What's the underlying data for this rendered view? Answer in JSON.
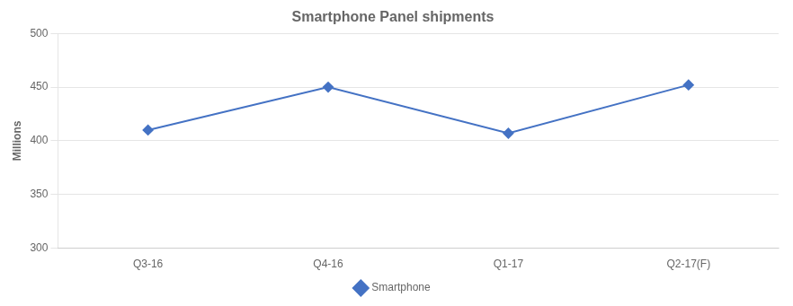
{
  "chart_data": {
    "type": "line",
    "title": "Smartphone Panel shipments",
    "categories": [
      "Q3-16",
      "Q4-16",
      "Q1-17",
      "Q2-17(F)"
    ],
    "series": [
      {
        "name": "Smartphone",
        "color": "#4472C4",
        "marker": "diamond",
        "values": [
          410,
          450,
          407,
          452
        ]
      }
    ],
    "ylabel": "Millions",
    "ylim": [
      300,
      500
    ],
    "yticks": [
      300,
      350,
      400,
      450,
      500
    ],
    "grid": true,
    "legend": "bottom"
  }
}
